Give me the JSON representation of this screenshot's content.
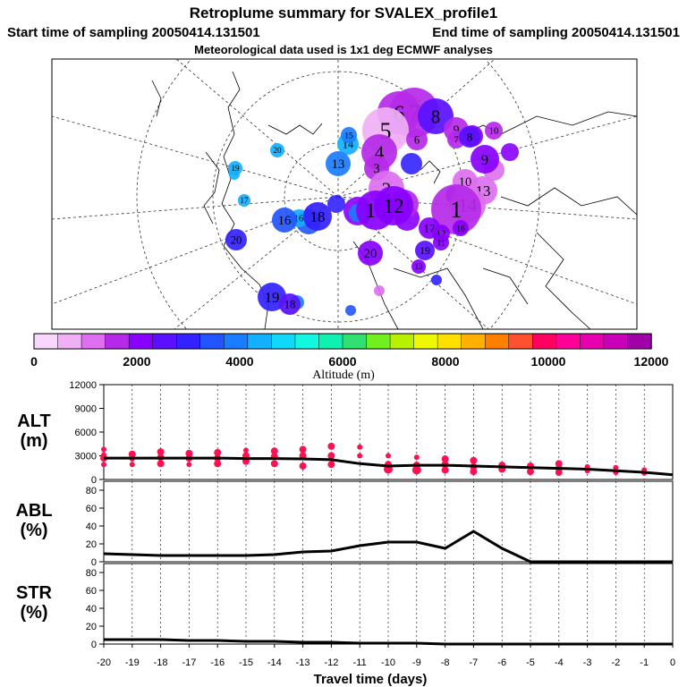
{
  "header": {
    "title": "Retroplume summary for SVALEX_profile1",
    "start": "Start time of sampling 20050414.131501",
    "end": "End time of sampling 20050414.131501",
    "met": "Meteorological data used is 1x1 deg ECMWF analyses"
  },
  "colors": {
    "scale": [
      "#f9d6fb",
      "#f0b0f5",
      "#dd6ff0",
      "#b52ae8",
      "#8800ff",
      "#5a10ff",
      "#3322ff",
      "#2255ff",
      "#1a7dff",
      "#12b0ff",
      "#10d8f8",
      "#10f8e0",
      "#10f0b0",
      "#30e070",
      "#70f020",
      "#b8f000",
      "#eef800",
      "#ffe000",
      "#ffb000",
      "#ff8000",
      "#ff5030",
      "#ff0060",
      "#ff0098",
      "#e800b0",
      "#c800b8",
      "#a000a8"
    ],
    "alt_points": "#ff1050",
    "line": "#000000"
  },
  "chart_data": [
    {
      "type": "map",
      "id": "retroplume-map",
      "projection": "polar stereographic, north pole",
      "note": "Numbered circles = plume centroid positions by day back in time, colour = altitude, size = plume spread",
      "labels": [
        {
          "day": 7,
          "alt": 1500
        },
        {
          "day": 6,
          "alt": 1800
        },
        {
          "day": 8,
          "alt": 2500
        },
        {
          "day": 5,
          "alt": 900
        },
        {
          "day": 9,
          "alt": 1800
        },
        {
          "day": 8,
          "alt": 1900
        },
        {
          "day": 10,
          "alt": 1800
        },
        {
          "day": 6,
          "alt": 1500
        },
        {
          "day": 7,
          "alt": 1500
        },
        {
          "day": 8,
          "alt": 2500
        },
        {
          "day": 4,
          "alt": 1600
        },
        {
          "day": 3,
          "alt": 1700
        },
        {
          "day": 9,
          "alt": 2300
        },
        {
          "day": 2,
          "alt": 1200
        },
        {
          "day": 10,
          "alt": 1300
        },
        {
          "day": 13,
          "alt": 1300
        },
        {
          "day": 11,
          "alt": 1600
        },
        {
          "day": 14,
          "alt": 1300
        },
        {
          "day": 1,
          "alt": 1500
        },
        {
          "day": 14,
          "alt": 4200
        },
        {
          "day": 15,
          "alt": 4000
        },
        {
          "day": 13,
          "alt": 4000
        },
        {
          "day": 20,
          "alt": 4200
        },
        {
          "day": 16,
          "alt": 4500
        },
        {
          "day": 19,
          "alt": 4400
        },
        {
          "day": 17,
          "alt": 4500
        },
        {
          "day": 16,
          "alt": 3300
        },
        {
          "day": 18,
          "alt": 2800
        },
        {
          "day": 20,
          "alt": 2800
        },
        {
          "day": 20,
          "alt": 2200
        },
        {
          "day": 19,
          "alt": 3000
        },
        {
          "day": 18,
          "alt": 2500
        },
        {
          "day": 19,
          "alt": 2500
        },
        {
          "day": 17,
          "alt": 2000
        },
        {
          "day": 16,
          "alt": 2000
        },
        {
          "day": 13,
          "alt": 2100
        },
        {
          "day": 12,
          "alt": 2000
        },
        {
          "day": 11,
          "alt": 2000
        },
        {
          "day": 15,
          "alt": 2000
        },
        {
          "day": 12,
          "alt": 2000
        }
      ]
    },
    {
      "type": "colorbar",
      "title": "Altitude (m)",
      "tick_labels": [
        "0",
        "2000",
        "4000",
        "6000",
        "8000",
        "10000",
        "12000"
      ],
      "range": [
        0,
        12000
      ],
      "bins": 26
    },
    {
      "type": "line+scatter",
      "id": "alt",
      "ylabel": [
        "ALT",
        "(m)"
      ],
      "yticks": [
        "12000",
        "9000",
        "6000",
        "3000",
        "0"
      ],
      "ylim": [
        0,
        12000
      ],
      "x": [
        -20,
        -19,
        -18,
        -17,
        -16,
        -15,
        -14,
        -13,
        -12,
        -11,
        -10,
        -9,
        -8,
        -7,
        -6,
        -5,
        -4,
        -3,
        -2,
        -1,
        0
      ],
      "line": [
        2700,
        2700,
        2700,
        2700,
        2700,
        2650,
        2650,
        2600,
        2500,
        2000,
        1700,
        1800,
        1800,
        1700,
        1600,
        1500,
        1400,
        1300,
        1100,
        900,
        600
      ],
      "scatter": [
        {
          "x": -20,
          "y": 3800,
          "s": 2
        },
        {
          "x": -20,
          "y": 3100,
          "s": 2
        },
        {
          "x": -20,
          "y": 2700,
          "s": 3
        },
        {
          "x": -20,
          "y": 1900,
          "s": 2
        },
        {
          "x": -19,
          "y": 3200,
          "s": 3
        },
        {
          "x": -19,
          "y": 2600,
          "s": 2
        },
        {
          "x": -19,
          "y": 1900,
          "s": 2
        },
        {
          "x": -18,
          "y": 3500,
          "s": 3
        },
        {
          "x": -18,
          "y": 2800,
          "s": 3
        },
        {
          "x": -18,
          "y": 2000,
          "s": 3
        },
        {
          "x": -17,
          "y": 3300,
          "s": 3
        },
        {
          "x": -17,
          "y": 2700,
          "s": 3
        },
        {
          "x": -17,
          "y": 1900,
          "s": 2
        },
        {
          "x": -16,
          "y": 3400,
          "s": 3
        },
        {
          "x": -16,
          "y": 2700,
          "s": 3
        },
        {
          "x": -16,
          "y": 2000,
          "s": 3
        },
        {
          "x": -15,
          "y": 3700,
          "s": 2
        },
        {
          "x": -15,
          "y": 3000,
          "s": 3
        },
        {
          "x": -15,
          "y": 2300,
          "s": 3
        },
        {
          "x": -14,
          "y": 3600,
          "s": 3
        },
        {
          "x": -14,
          "y": 2900,
          "s": 3
        },
        {
          "x": -14,
          "y": 2000,
          "s": 3
        },
        {
          "x": -13,
          "y": 3800,
          "s": 3
        },
        {
          "x": -13,
          "y": 3000,
          "s": 3
        },
        {
          "x": -13,
          "y": 1700,
          "s": 3
        },
        {
          "x": -12,
          "y": 4200,
          "s": 3
        },
        {
          "x": -12,
          "y": 3000,
          "s": 3
        },
        {
          "x": -12,
          "y": 1900,
          "s": 3
        },
        {
          "x": -11,
          "y": 4100,
          "s": 2
        },
        {
          "x": -11,
          "y": 3000,
          "s": 2
        },
        {
          "x": -10,
          "y": 3000,
          "s": 2
        },
        {
          "x": -10,
          "y": 1900,
          "s": 3
        },
        {
          "x": -10,
          "y": 1300,
          "s": 4
        },
        {
          "x": -9,
          "y": 2800,
          "s": 2
        },
        {
          "x": -9,
          "y": 1800,
          "s": 3
        },
        {
          "x": -9,
          "y": 1200,
          "s": 4
        },
        {
          "x": -8,
          "y": 2600,
          "s": 3
        },
        {
          "x": -8,
          "y": 1900,
          "s": 3
        },
        {
          "x": -8,
          "y": 1200,
          "s": 3
        },
        {
          "x": -7,
          "y": 2400,
          "s": 3
        },
        {
          "x": -7,
          "y": 1600,
          "s": 3
        },
        {
          "x": -7,
          "y": 1000,
          "s": 3
        },
        {
          "x": -6,
          "y": 1800,
          "s": 3
        },
        {
          "x": -6,
          "y": 1300,
          "s": 3
        },
        {
          "x": -5,
          "y": 1700,
          "s": 3
        },
        {
          "x": -5,
          "y": 1000,
          "s": 3
        },
        {
          "x": -4,
          "y": 2000,
          "s": 3
        },
        {
          "x": -4,
          "y": 1400,
          "s": 3
        },
        {
          "x": -4,
          "y": 900,
          "s": 3
        },
        {
          "x": -3,
          "y": 1600,
          "s": 2
        },
        {
          "x": -3,
          "y": 1100,
          "s": 2
        },
        {
          "x": -2,
          "y": 1500,
          "s": 2
        },
        {
          "x": -2,
          "y": 900,
          "s": 2
        },
        {
          "x": -1,
          "y": 1200,
          "s": 2
        },
        {
          "x": -1,
          "y": 800,
          "s": 2
        }
      ]
    },
    {
      "type": "line",
      "id": "abl",
      "ylabel": [
        "ABL",
        "(%)"
      ],
      "yticks": [
        "80",
        "60",
        "40",
        "20",
        "0"
      ],
      "ylim": [
        0,
        90
      ],
      "x": [
        -20,
        -19,
        -18,
        -17,
        -16,
        -15,
        -14,
        -13,
        -12,
        -11,
        -10,
        -9,
        -8,
        -7,
        -6,
        -5,
        -4,
        -3,
        -2,
        -1,
        0
      ],
      "values": [
        9,
        8,
        7,
        7,
        7,
        7,
        8,
        11,
        12,
        18,
        22,
        22,
        15,
        34,
        15,
        0,
        0,
        0,
        0,
        0,
        0
      ]
    },
    {
      "type": "line",
      "id": "str",
      "ylabel": [
        "STR",
        "(%)"
      ],
      "yticks": [
        "80",
        "60",
        "40",
        "20",
        "0"
      ],
      "ylim": [
        0,
        90
      ],
      "x": [
        -20,
        -19,
        -18,
        -17,
        -16,
        -15,
        -14,
        -13,
        -12,
        -11,
        -10,
        -9,
        -8,
        -7,
        -6,
        -5,
        -4,
        -3,
        -2,
        -1,
        0
      ],
      "values": [
        5,
        5,
        5,
        4,
        4,
        3,
        3,
        2,
        2,
        1,
        1,
        1,
        0,
        0,
        0,
        0,
        0,
        0,
        0,
        0,
        0
      ],
      "xticks": [
        "-20",
        "-19",
        "-18",
        "-17",
        "-16",
        "-15",
        "-14",
        "-13",
        "-12",
        "-11",
        "-10",
        "-9",
        "-8",
        "-7",
        "-6",
        "-5",
        "-4",
        "-3",
        "-2",
        "-1",
        "0"
      ],
      "xlabel": "Travel time (days)"
    }
  ]
}
